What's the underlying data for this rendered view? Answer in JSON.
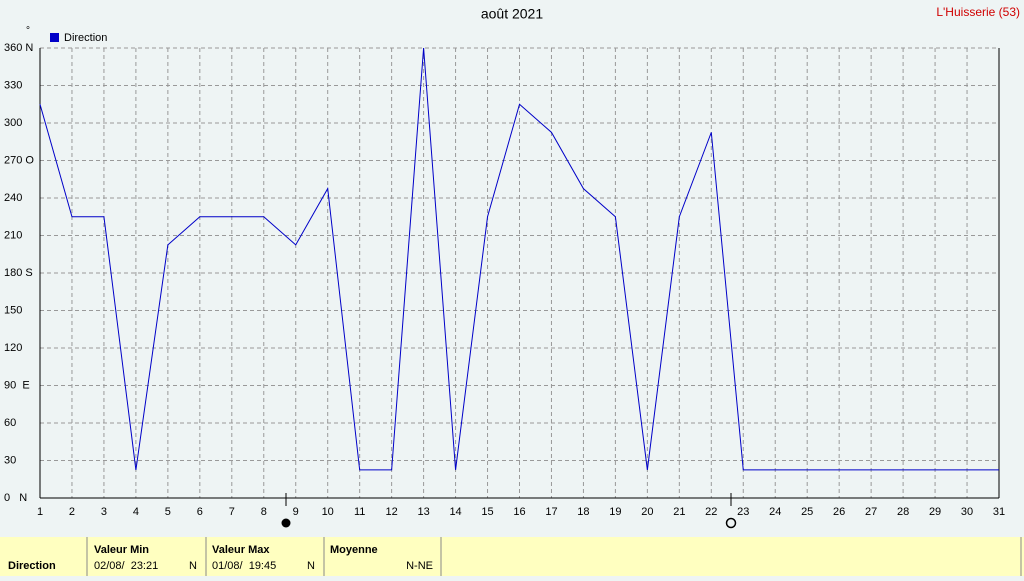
{
  "chart_data": {
    "type": "line",
    "title": "août 2021",
    "station": "L'Huisserie (53)",
    "y_unit": "°",
    "x": [
      1,
      2,
      3,
      4,
      5,
      6,
      7,
      8,
      9,
      10,
      11,
      12,
      13,
      14,
      15,
      16,
      17,
      18,
      19,
      20,
      21,
      22,
      23,
      24,
      25,
      26,
      27,
      28,
      29,
      30,
      31
    ],
    "series": [
      {
        "name": "Direction",
        "color": "#0000c8",
        "values": [
          315,
          225,
          225,
          22.5,
          202.5,
          225,
          225,
          225,
          202.5,
          247.5,
          22.5,
          22.5,
          360,
          22.5,
          225,
          315,
          292.5,
          247.5,
          225,
          22.5,
          225,
          292.5,
          22.5,
          22.5,
          22.5,
          22.5,
          22.5,
          22.5,
          22.5,
          22.5,
          22.5
        ]
      }
    ],
    "xlim": [
      1,
      31
    ],
    "xticks": [
      1,
      2,
      3,
      4,
      5,
      6,
      7,
      8,
      9,
      10,
      11,
      12,
      13,
      14,
      15,
      16,
      17,
      18,
      19,
      20,
      21,
      22,
      23,
      24,
      25,
      26,
      27,
      28,
      29,
      30,
      31
    ],
    "ylim": [
      0,
      360
    ],
    "yticks": [
      {
        "value": 0,
        "label": "0   N"
      },
      30,
      60,
      {
        "value": 90,
        "label": "90  E"
      },
      120,
      150,
      {
        "value": 180,
        "label": "180 S"
      },
      210,
      240,
      {
        "value": 270,
        "label": "270 O"
      },
      300,
      330,
      {
        "value": 360,
        "label": "360 N"
      }
    ],
    "grid": true,
    "legend": "top-left"
  },
  "footer": {
    "row_label": "Direction",
    "min": {
      "header": "Valeur Min",
      "date": "02/08/  23:21",
      "value": "N"
    },
    "max": {
      "header": "Valeur Max",
      "date": "01/08/  19:45",
      "value": "N"
    },
    "mean": {
      "header": "Moyenne",
      "value": "N-NE"
    }
  }
}
